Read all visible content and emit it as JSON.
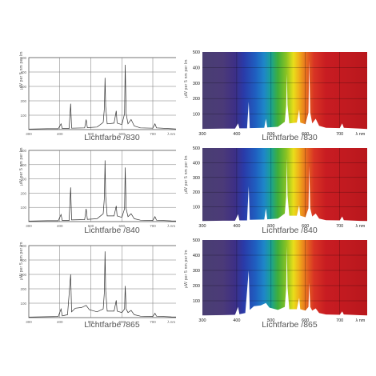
{
  "chart_data": [
    {
      "type": "line",
      "style": "plain",
      "caption": "Lichtfarbe /830",
      "ylabel": "µW per 5 nm per lm",
      "xlim": [
        300,
        780
      ],
      "ylim": [
        0,
        500
      ],
      "x_ticks": [
        "300",
        "400",
        "500",
        "600",
        "700"
      ],
      "x_unit": "λ nm",
      "y_ticks": [
        "100",
        "200",
        "300",
        "400",
        "500"
      ],
      "series": [
        {
          "points": [
            [
              300,
              4
            ],
            [
              360,
              6
            ],
            [
              395,
              6
            ],
            [
              404,
              40
            ],
            [
              408,
              8
            ],
            [
              430,
              8
            ],
            [
              435,
              180
            ],
            [
              438,
              10
            ],
            [
              480,
              12
            ],
            [
              485,
              70
            ],
            [
              489,
              14
            ],
            [
              520,
              18
            ],
            [
              540,
              50
            ],
            [
              544,
              150
            ],
            [
              546,
              360
            ],
            [
              548,
              160
            ],
            [
              553,
              40
            ],
            [
              575,
              45
            ],
            [
              582,
              130
            ],
            [
              585,
              45
            ],
            [
              600,
              35
            ],
            [
              609,
              110
            ],
            [
              611,
              450
            ],
            [
              614,
              110
            ],
            [
              620,
              40
            ],
            [
              630,
              70
            ],
            [
              640,
              25
            ],
            [
              660,
              12
            ],
            [
              700,
              10
            ],
            [
              707,
              40
            ],
            [
              712,
              12
            ],
            [
              760,
              6
            ],
            [
              780,
              4
            ]
          ]
        }
      ]
    },
    {
      "type": "line",
      "style": "spectrum",
      "caption": "Lichtfarbe /830",
      "ylabel": "µW per 5 nm per lm",
      "xlim": [
        300,
        780
      ],
      "ylim": [
        0,
        500
      ],
      "x_ticks": [
        "300",
        "400",
        "500",
        "600",
        "700"
      ],
      "x_unit": "λ nm",
      "y_ticks": [
        "100",
        "200",
        "300",
        "400",
        "500"
      ],
      "series": [
        {
          "points": [
            [
              300,
              4
            ],
            [
              360,
              6
            ],
            [
              395,
              6
            ],
            [
              404,
              40
            ],
            [
              408,
              8
            ],
            [
              430,
              8
            ],
            [
              435,
              180
            ],
            [
              438,
              10
            ],
            [
              480,
              12
            ],
            [
              485,
              70
            ],
            [
              489,
              14
            ],
            [
              520,
              18
            ],
            [
              540,
              50
            ],
            [
              544,
              150
            ],
            [
              546,
              360
            ],
            [
              548,
              160
            ],
            [
              553,
              40
            ],
            [
              575,
              45
            ],
            [
              582,
              130
            ],
            [
              585,
              45
            ],
            [
              600,
              35
            ],
            [
              609,
              110
            ],
            [
              611,
              450
            ],
            [
              614,
              110
            ],
            [
              620,
              40
            ],
            [
              630,
              70
            ],
            [
              640,
              25
            ],
            [
              660,
              12
            ],
            [
              700,
              10
            ],
            [
              707,
              40
            ],
            [
              712,
              12
            ],
            [
              760,
              6
            ],
            [
              780,
              4
            ]
          ]
        }
      ]
    },
    {
      "type": "line",
      "style": "plain",
      "caption": "Lichtfarbe /840",
      "ylabel": "µW per 5 nm per lm",
      "xlim": [
        300,
        780
      ],
      "ylim": [
        0,
        500
      ],
      "x_ticks": [
        "300",
        "400",
        "500",
        "600",
        "700"
      ],
      "x_unit": "λ nm",
      "y_ticks": [
        "100",
        "200",
        "300",
        "400",
        "500"
      ],
      "series": [
        {
          "points": [
            [
              300,
              4
            ],
            [
              360,
              6
            ],
            [
              395,
              6
            ],
            [
              404,
              50
            ],
            [
              408,
              8
            ],
            [
              430,
              8
            ],
            [
              435,
              240
            ],
            [
              438,
              12
            ],
            [
              480,
              14
            ],
            [
              485,
              90
            ],
            [
              489,
              16
            ],
            [
              520,
              20
            ],
            [
              540,
              55
            ],
            [
              544,
              170
            ],
            [
              546,
              430
            ],
            [
              548,
              180
            ],
            [
              553,
              40
            ],
            [
              575,
              40
            ],
            [
              582,
              110
            ],
            [
              585,
              40
            ],
            [
              600,
              30
            ],
            [
              609,
              90
            ],
            [
              611,
              380
            ],
            [
              614,
              90
            ],
            [
              620,
              35
            ],
            [
              630,
              55
            ],
            [
              640,
              20
            ],
            [
              660,
              10
            ],
            [
              700,
              8
            ],
            [
              707,
              35
            ],
            [
              712,
              10
            ],
            [
              760,
              5
            ],
            [
              780,
              4
            ]
          ]
        }
      ]
    },
    {
      "type": "line",
      "style": "spectrum",
      "caption": "Lichtfarbe /840",
      "ylabel": "µW per 5 nm per lm",
      "xlim": [
        300,
        780
      ],
      "ylim": [
        0,
        500
      ],
      "x_ticks": [
        "300",
        "400",
        "500",
        "600",
        "700"
      ],
      "x_unit": "λ nm",
      "y_ticks": [
        "100",
        "200",
        "300",
        "400",
        "500"
      ],
      "series": [
        {
          "points": [
            [
              300,
              4
            ],
            [
              360,
              6
            ],
            [
              395,
              6
            ],
            [
              404,
              50
            ],
            [
              408,
              8
            ],
            [
              430,
              8
            ],
            [
              435,
              240
            ],
            [
              438,
              12
            ],
            [
              480,
              14
            ],
            [
              485,
              90
            ],
            [
              489,
              16
            ],
            [
              520,
              20
            ],
            [
              540,
              55
            ],
            [
              544,
              170
            ],
            [
              546,
              430
            ],
            [
              548,
              180
            ],
            [
              553,
              40
            ],
            [
              575,
              40
            ],
            [
              582,
              110
            ],
            [
              585,
              40
            ],
            [
              600,
              30
            ],
            [
              609,
              90
            ],
            [
              611,
              380
            ],
            [
              614,
              90
            ],
            [
              620,
              35
            ],
            [
              630,
              55
            ],
            [
              640,
              20
            ],
            [
              660,
              10
            ],
            [
              700,
              8
            ],
            [
              707,
              35
            ],
            [
              712,
              10
            ],
            [
              760,
              5
            ],
            [
              780,
              4
            ]
          ]
        }
      ]
    },
    {
      "type": "line",
      "style": "plain",
      "caption": "Lichtfarbe /865",
      "ylabel": "µW per 5 nm per lm",
      "xlim": [
        300,
        780
      ],
      "ylim": [
        0,
        500
      ],
      "x_ticks": [
        "300",
        "400",
        "500",
        "600",
        "700"
      ],
      "x_unit": "λ nm",
      "y_ticks": [
        "100",
        "200",
        "300",
        "400",
        "500"
      ],
      "series": [
        {
          "points": [
            [
              300,
              4
            ],
            [
              360,
              6
            ],
            [
              395,
              8
            ],
            [
              404,
              60
            ],
            [
              408,
              12
            ],
            [
              425,
              20
            ],
            [
              435,
              300
            ],
            [
              438,
              40
            ],
            [
              450,
              65
            ],
            [
              470,
              70
            ],
            [
              485,
              85
            ],
            [
              495,
              55
            ],
            [
              520,
              40
            ],
            [
              540,
              60
            ],
            [
              544,
              180
            ],
            [
              546,
              460
            ],
            [
              548,
              190
            ],
            [
              553,
              45
            ],
            [
              575,
              45
            ],
            [
              582,
              120
            ],
            [
              585,
              45
            ],
            [
              600,
              35
            ],
            [
              609,
              60
            ],
            [
              611,
              220
            ],
            [
              614,
              60
            ],
            [
              620,
              35
            ],
            [
              630,
              50
            ],
            [
              640,
              20
            ],
            [
              660,
              10
            ],
            [
              700,
              8
            ],
            [
              707,
              30
            ],
            [
              712,
              10
            ],
            [
              760,
              5
            ],
            [
              780,
              4
            ]
          ]
        }
      ]
    },
    {
      "type": "line",
      "style": "spectrum",
      "caption": "Lichtfarbe /865",
      "ylabel": "µW per 5 nm per lm",
      "xlim": [
        300,
        780
      ],
      "ylim": [
        0,
        500
      ],
      "x_ticks": [
        "300",
        "400",
        "500",
        "600",
        "700"
      ],
      "x_unit": "λ nm",
      "y_ticks": [
        "100",
        "200",
        "300",
        "400",
        "500"
      ],
      "series": [
        {
          "points": [
            [
              300,
              4
            ],
            [
              360,
              6
            ],
            [
              395,
              8
            ],
            [
              404,
              60
            ],
            [
              408,
              12
            ],
            [
              425,
              20
            ],
            [
              435,
              300
            ],
            [
              438,
              40
            ],
            [
              450,
              65
            ],
            [
              470,
              70
            ],
            [
              485,
              85
            ],
            [
              495,
              55
            ],
            [
              520,
              40
            ],
            [
              540,
              60
            ],
            [
              544,
              180
            ],
            [
              546,
              460
            ],
            [
              548,
              190
            ],
            [
              553,
              45
            ],
            [
              575,
              45
            ],
            [
              582,
              120
            ],
            [
              585,
              45
            ],
            [
              600,
              35
            ],
            [
              609,
              60
            ],
            [
              611,
              220
            ],
            [
              614,
              60
            ],
            [
              620,
              35
            ],
            [
              630,
              50
            ],
            [
              640,
              20
            ],
            [
              660,
              10
            ],
            [
              700,
              8
            ],
            [
              707,
              30
            ],
            [
              712,
              10
            ],
            [
              760,
              5
            ],
            [
              780,
              4
            ]
          ]
        }
      ]
    }
  ]
}
